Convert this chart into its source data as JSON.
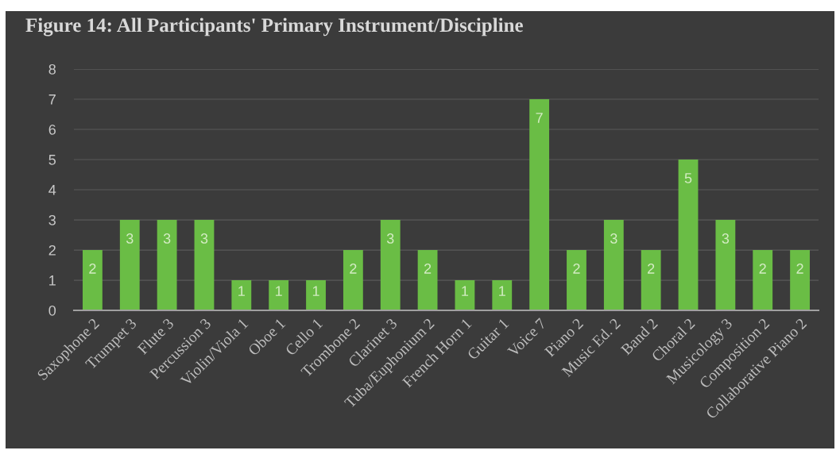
{
  "chart_data": {
    "type": "bar",
    "title": "Figure 14: All Participants' Primary Instrument/Discipline",
    "categories": [
      "Saxophone 2",
      "Trumpet 3",
      "Flute 3",
      "Percussion 3",
      "Violin/Viola 1",
      "Oboe 1",
      "Cello 1",
      "Trombone 2",
      "Clarinet 3",
      "Tuba/Euphonium 2",
      "French Horn 1",
      "Guitar 1",
      "Voice 7",
      "Piano 2",
      "Music Ed. 2",
      "Band 2",
      "Choral 2",
      "Musicology 3",
      "Composition 2",
      "Collaborative Piano 2"
    ],
    "values": [
      2,
      3,
      3,
      3,
      1,
      1,
      1,
      2,
      3,
      2,
      1,
      1,
      7,
      2,
      3,
      2,
      5,
      3,
      2,
      2
    ],
    "color": "#6abd45",
    "ylim": [
      0,
      8
    ],
    "yticks": [
      0,
      1,
      2,
      3,
      4,
      5,
      6,
      7,
      8
    ],
    "grid": "y",
    "data_labels": true
  }
}
